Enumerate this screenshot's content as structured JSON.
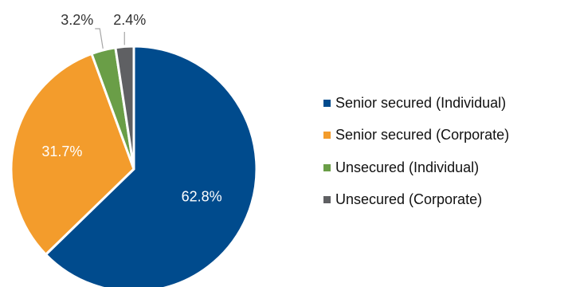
{
  "chart_data": {
    "type": "pie",
    "title": "",
    "slices": [
      {
        "name": "Senior secured (Individual)",
        "value": 62.8,
        "label": "62.8%",
        "color": "#004b8d"
      },
      {
        "name": "Senior secured (Corporate)",
        "value": 31.7,
        "label": "31.7%",
        "color": "#f39c2c"
      },
      {
        "name": "Unsecured (Individual)",
        "value": 3.2,
        "label": "3.2%",
        "color": "#6a9e47"
      },
      {
        "name": "Unsecured (Corporate)",
        "value": 2.4,
        "label": "2.4%",
        "color": "#5f6063"
      }
    ],
    "legend_position": "right",
    "label_colors": {
      "inside": "#ffffff",
      "outside": "#333333",
      "leader_line": "#a6a6a6"
    }
  }
}
